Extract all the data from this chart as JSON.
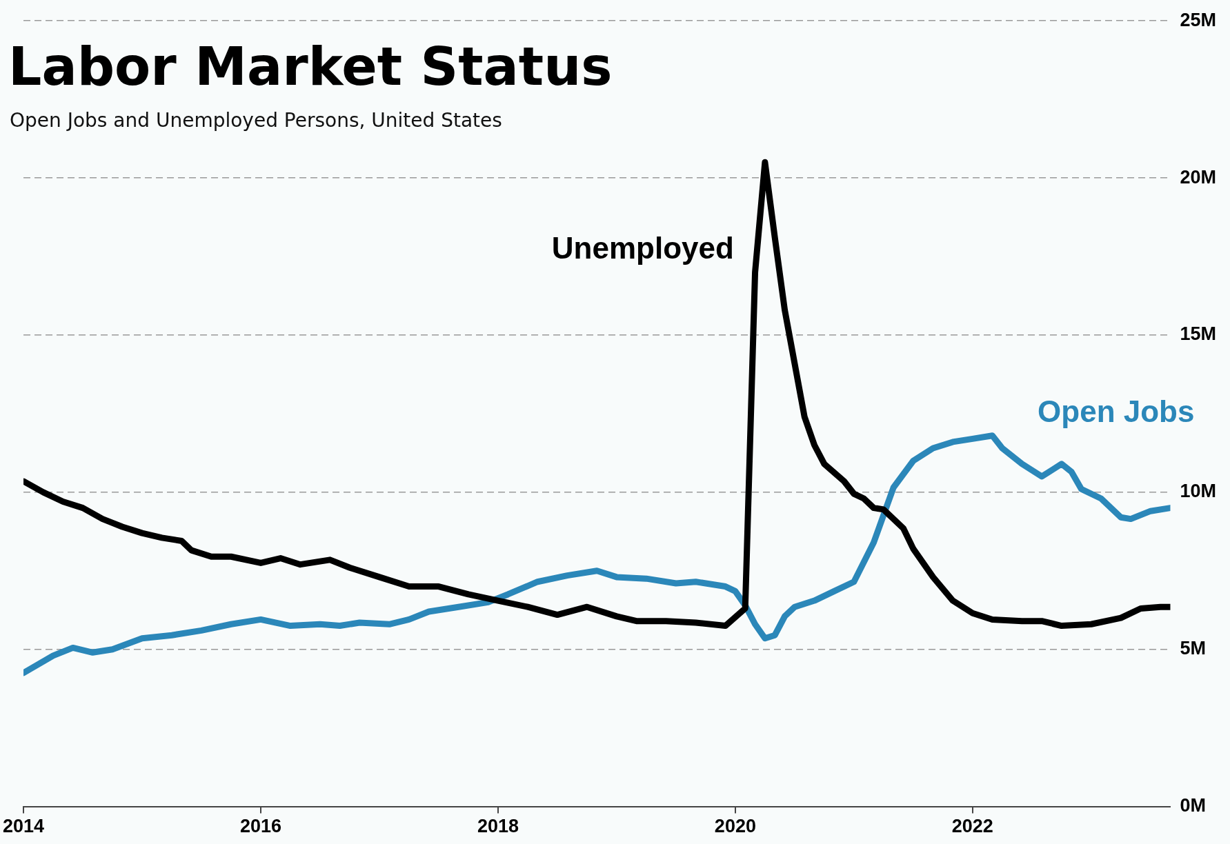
{
  "chart_data": {
    "type": "line",
    "title": "Labor Market Status",
    "subtitle": "Open Jobs and Unemployed Persons, United States",
    "xlim": [
      "2014-01",
      "2023-09"
    ],
    "xticks": [
      "2014",
      "2016",
      "2018",
      "2020",
      "2022"
    ],
    "ylim": [
      0,
      25
    ],
    "yticks": [
      {
        "value": 0,
        "label": "0M"
      },
      {
        "value": 5,
        "label": "5M"
      },
      {
        "value": 10,
        "label": "10M"
      },
      {
        "value": 15,
        "label": "15M"
      },
      {
        "value": 20,
        "label": "20M"
      },
      {
        "value": 25,
        "label": "25M"
      }
    ],
    "grid": "y",
    "legend": false,
    "marker": "none",
    "series": [
      {
        "name": "Unemployed",
        "color": "#000000",
        "x": [
          "2014-01",
          "2014-03",
          "2014-05",
          "2014-07",
          "2014-09",
          "2014-11",
          "2015-01",
          "2015-03",
          "2015-05",
          "2015-06",
          "2015-08",
          "2015-10",
          "2016-01",
          "2016-03",
          "2016-05",
          "2016-08",
          "2016-10",
          "2017-01",
          "2017-04",
          "2017-07",
          "2017-10",
          "2018-01",
          "2018-04",
          "2018-07",
          "2018-10",
          "2019-01",
          "2019-03",
          "2019-06",
          "2019-09",
          "2019-12",
          "2020-02",
          "2020-03",
          "2020-04",
          "2020-05",
          "2020-06",
          "2020-08",
          "2020-09",
          "2020-10",
          "2020-12",
          "2021-01",
          "2021-02",
          "2021-03",
          "2021-04",
          "2021-06",
          "2021-07",
          "2021-09",
          "2021-11",
          "2022-01",
          "2022-03",
          "2022-06",
          "2022-08",
          "2022-10",
          "2023-01",
          "2023-04",
          "2023-06",
          "2023-08",
          "2023-09"
        ],
        "values": [
          10.35,
          10.0,
          9.7,
          9.5,
          9.15,
          8.9,
          8.7,
          8.55,
          8.45,
          8.15,
          7.95,
          7.95,
          7.75,
          7.9,
          7.7,
          7.85,
          7.6,
          7.3,
          7.0,
          7.0,
          6.75,
          6.55,
          6.35,
          6.1,
          6.35,
          6.05,
          5.9,
          5.9,
          5.85,
          5.75,
          6.3,
          17.0,
          20.5,
          18.1,
          15.8,
          12.4,
          11.5,
          10.9,
          10.35,
          9.95,
          9.8,
          9.5,
          9.45,
          8.85,
          8.2,
          7.3,
          6.55,
          6.15,
          5.95,
          5.9,
          5.9,
          5.75,
          5.8,
          6.0,
          6.3,
          6.35,
          6.35
        ]
      },
      {
        "name": "Open Jobs",
        "color": "#2b87b9",
        "x": [
          "2014-01",
          "2014-04",
          "2014-06",
          "2014-08",
          "2014-10",
          "2015-01",
          "2015-04",
          "2015-07",
          "2015-10",
          "2016-01",
          "2016-04",
          "2016-07",
          "2016-09",
          "2016-11",
          "2017-02",
          "2017-04",
          "2017-06",
          "2017-09",
          "2017-12",
          "2018-02",
          "2018-05",
          "2018-08",
          "2018-11",
          "2019-01",
          "2019-04",
          "2019-07",
          "2019-09",
          "2019-12",
          "2020-01",
          "2020-02",
          "2020-03",
          "2020-04",
          "2020-05",
          "2020-06",
          "2020-07",
          "2020-09",
          "2020-11",
          "2021-01",
          "2021-03",
          "2021-05",
          "2021-07",
          "2021-09",
          "2021-11",
          "2022-01",
          "2022-03",
          "2022-04",
          "2022-06",
          "2022-08",
          "2022-10",
          "2022-11",
          "2022-12",
          "2023-02",
          "2023-04",
          "2023-05",
          "2023-07",
          "2023-09"
        ],
        "values": [
          4.25,
          4.8,
          5.05,
          4.9,
          5.0,
          5.35,
          5.45,
          5.6,
          5.8,
          5.95,
          5.75,
          5.8,
          5.75,
          5.85,
          5.8,
          5.95,
          6.2,
          6.35,
          6.5,
          6.75,
          7.15,
          7.35,
          7.5,
          7.3,
          7.25,
          7.1,
          7.15,
          7.0,
          6.85,
          6.4,
          5.8,
          5.35,
          5.45,
          6.05,
          6.35,
          6.55,
          6.85,
          7.15,
          8.4,
          10.15,
          11.0,
          11.4,
          11.6,
          11.7,
          11.8,
          11.4,
          10.9,
          10.5,
          10.9,
          10.65,
          10.1,
          9.8,
          9.2,
          9.15,
          9.4,
          9.5
        ]
      }
    ]
  }
}
